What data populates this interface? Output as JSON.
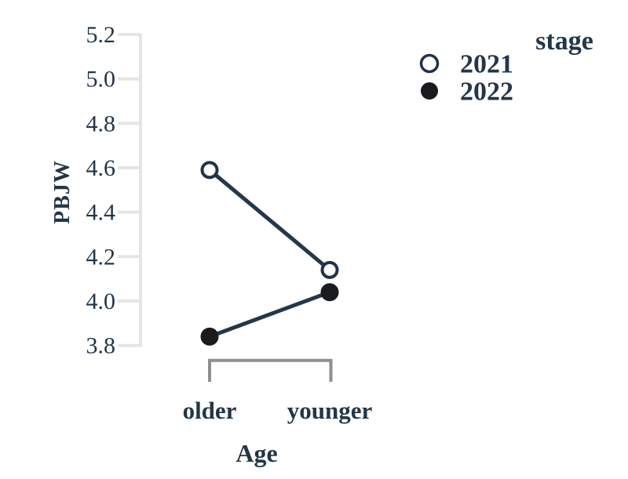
{
  "figure": {
    "colors": {
      "text": "#233649",
      "line": "#24374b",
      "axis": "#e5e5e5",
      "bracket": "#8f8f8f",
      "marker_open_fill": "#ffffff",
      "marker_open_stroke": "#20324a",
      "marker_filled_fill": "#191b1e",
      "background": "#ffffff"
    }
  },
  "chart_data": {
    "type": "line",
    "title": "",
    "xlabel": "Age",
    "ylabel": "PBJW",
    "categories": [
      "older",
      "younger"
    ],
    "series": [
      {
        "name": "2021",
        "marker": "open-circle",
        "values": [
          4.59,
          4.14
        ]
      },
      {
        "name": "2022",
        "marker": "filled-circle",
        "values": [
          3.84,
          4.04
        ]
      }
    ],
    "ytick_labels": [
      "5.2",
      "5.0",
      "4.8",
      "4.6",
      "4.4",
      "4.2",
      "4.0",
      "3.8"
    ],
    "yticks": [
      5.2,
      5.0,
      4.8,
      4.6,
      4.4,
      4.2,
      4.0,
      3.8
    ],
    "ylim": [
      3.8,
      5.2
    ],
    "grid": false,
    "legend": {
      "title": "stage",
      "entries": [
        "2021",
        "2022"
      ],
      "position": "top-right"
    }
  }
}
